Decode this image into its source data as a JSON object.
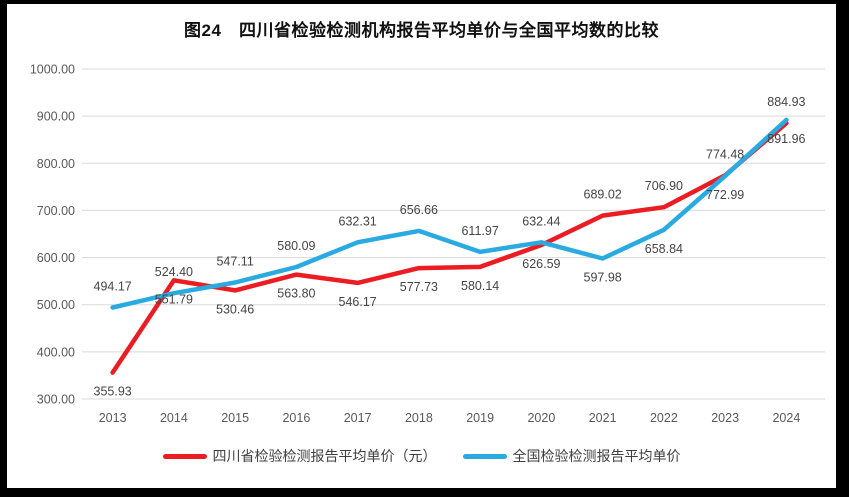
{
  "title": "图24　四川省检验检测机构报告平均单价与全国平均数的比较",
  "chart_data": {
    "type": "line",
    "categories": [
      "2013",
      "2014",
      "2015",
      "2016",
      "2017",
      "2018",
      "2019",
      "2020",
      "2021",
      "2022",
      "2023",
      "2024"
    ],
    "series": [
      {
        "name": "四川省检验检测报告平均单价（元）",
        "color": "#ec1c23",
        "values": [
          355.93,
          551.79,
          530.46,
          563.8,
          546.17,
          577.73,
          580.14,
          626.59,
          689.02,
          706.9,
          774.48,
          884.93
        ]
      },
      {
        "name": "全国检验检测报告平均单价",
        "color": "#29abe2",
        "values": [
          494.17,
          524.4,
          547.11,
          580.09,
          632.31,
          656.66,
          611.97,
          632.44,
          597.98,
          658.84,
          772.99,
          891.96
        ]
      }
    ],
    "ylim": [
      300,
      1000
    ],
    "ytick_step": 100,
    "ytick_labels": [
      "1000.00",
      "900.00",
      "800.00",
      "700.00",
      "600.00",
      "500.00",
      "400.00",
      "300.00"
    ],
    "grid": "horizontal",
    "gridline_color": "#d9d9d9",
    "legend_position": "bottom",
    "data_labels": true,
    "label_side_switch_index": 8
  }
}
